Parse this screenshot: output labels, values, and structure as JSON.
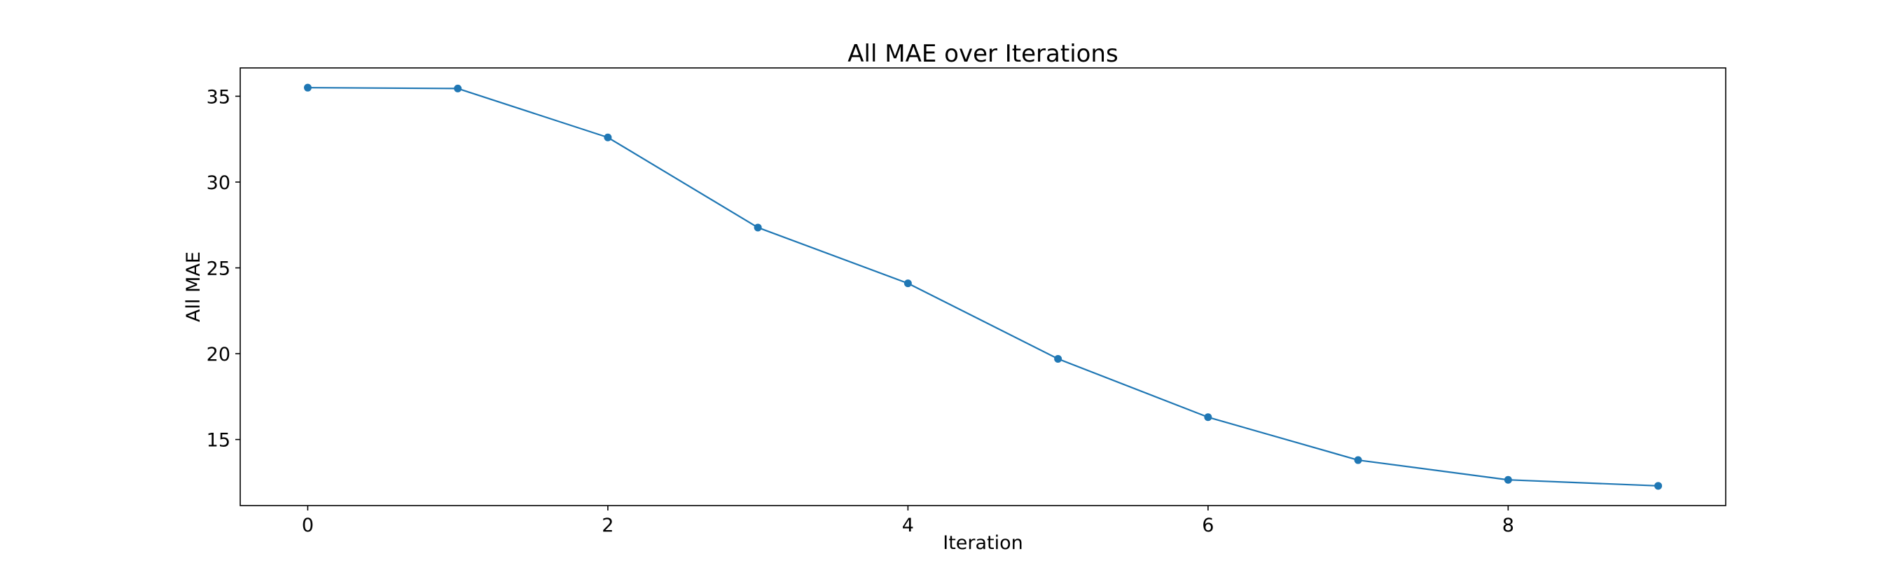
{
  "chart_data": {
    "type": "line",
    "title": "All MAE over Iterations",
    "xlabel": "Iteration",
    "ylabel": "All MAE",
    "x": [
      0,
      1,
      2,
      3,
      4,
      5,
      6,
      7,
      8,
      9
    ],
    "series": [
      {
        "values": [
          35.5,
          35.45,
          32.6,
          27.35,
          24.1,
          19.7,
          16.3,
          13.8,
          12.65,
          12.3
        ],
        "color": "#1f77b4",
        "marker": "circle"
      }
    ],
    "xlim": [
      -0.45,
      9.45
    ],
    "ylim": [
      11.15,
      36.65
    ],
    "xticks": [
      0,
      2,
      4,
      6,
      8
    ],
    "xtick_labels": [
      "0",
      "2",
      "4",
      "6",
      "8"
    ],
    "yticks": [
      15,
      20,
      25,
      30,
      35
    ],
    "ytick_labels": [
      "15",
      "20",
      "25",
      "30",
      "35"
    ],
    "grid": false,
    "legend": "none"
  }
}
